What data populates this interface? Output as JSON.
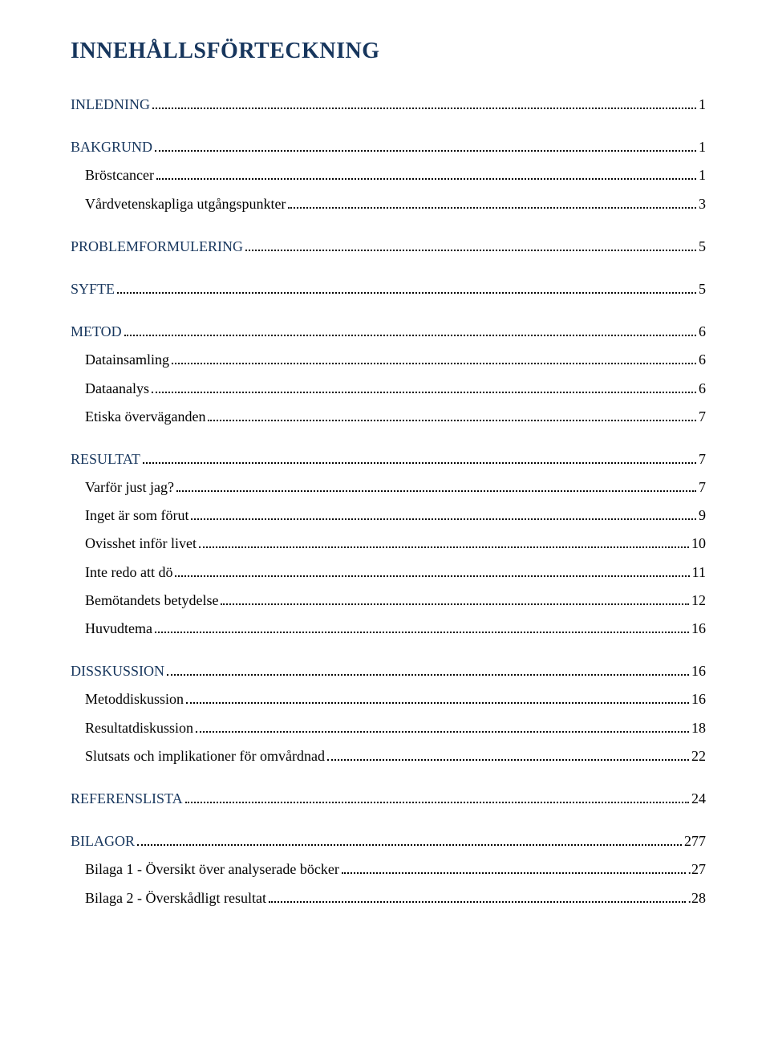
{
  "title": "INNEHÅLLSFÖRTECKNING",
  "colors": {
    "heading_color": "#17365d",
    "text_color": "#000000",
    "background": "#ffffff"
  },
  "toc": [
    {
      "label": "INLEDNING",
      "page": "1",
      "level": "heading",
      "first": true
    },
    {
      "label": "BAKGRUND",
      "page": "1",
      "level": "heading"
    },
    {
      "label": "Bröstcancer",
      "page": "1",
      "level": "sub"
    },
    {
      "label": "Vårdvetenskapliga utgångspunkter",
      "page": "3",
      "level": "sub"
    },
    {
      "label": "PROBLEMFORMULERING",
      "page": "5",
      "level": "heading"
    },
    {
      "label": "SYFTE",
      "page": "5",
      "level": "heading"
    },
    {
      "label": "METOD",
      "page": "6",
      "level": "heading"
    },
    {
      "label": "Datainsamling",
      "page": "6",
      "level": "sub"
    },
    {
      "label": "Dataanalys",
      "page": "6",
      "level": "sub"
    },
    {
      "label": "Etiska överväganden",
      "page": "7",
      "level": "sub"
    },
    {
      "label": "RESULTAT",
      "page": "7",
      "level": "heading"
    },
    {
      "label": "Varför just jag?",
      "page": "7",
      "level": "sub"
    },
    {
      "label": "Inget är som förut",
      "page": "9",
      "level": "sub"
    },
    {
      "label": "Ovisshet inför livet",
      "page": "10",
      "level": "sub"
    },
    {
      "label": "Inte redo att dö",
      "page": "11",
      "level": "sub"
    },
    {
      "label": "Bemötandets betydelse",
      "page": "12",
      "level": "sub"
    },
    {
      "label": "Huvudtema",
      "page": "16",
      "level": "sub"
    },
    {
      "label": "DISSKUSSION",
      "page": "16",
      "level": "heading"
    },
    {
      "label": "Metoddiskussion",
      "page": "16",
      "level": "sub"
    },
    {
      "label": "Resultatdiskussion",
      "page": "18",
      "level": "sub"
    },
    {
      "label": "Slutsats och implikationer för omvårdnad",
      "page": "22",
      "level": "sub"
    },
    {
      "label": "REFERENSLISTA",
      "page": "24",
      "level": "heading"
    },
    {
      "label": "BILAGOR",
      "page": "277",
      "level": "heading"
    },
    {
      "label": "Bilaga 1 - Översikt över analyserade böcker",
      "page": "27",
      "level": "sub",
      "trailing_dot": true
    },
    {
      "label": "Bilaga 2 - Överskådligt resultat",
      "page": "28",
      "level": "sub",
      "trailing_dot": true
    }
  ]
}
